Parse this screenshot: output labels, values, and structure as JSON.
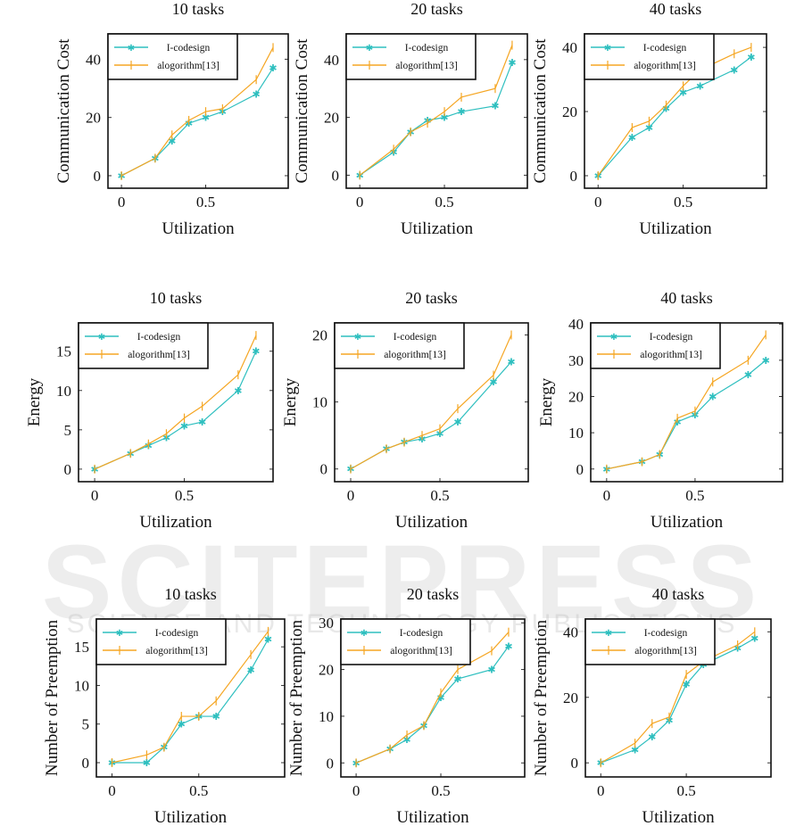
{
  "watermark": {
    "main": "SCITEPRESS",
    "sub": "SCIENCE AND TECHNOLOGY PUBLICATIONS"
  },
  "colors": {
    "I-codesign": "#2ebfbf",
    "alogorithm[13]": "#f5a623"
  },
  "chart_data": [
    {
      "type": "line",
      "title": "10 tasks",
      "xlabel": "Utilization",
      "ylabel": "Communication Cost",
      "xlim": [
        -0.08,
        0.99
      ],
      "ylim": [
        -4.3,
        48.7
      ],
      "xticks": [
        "0",
        "0.5"
      ],
      "yticks": [
        "0",
        "20",
        "40"
      ],
      "legend": "top-left",
      "x": [
        0,
        0.2,
        0.3,
        0.4,
        0.5,
        0.6,
        0.8,
        0.9
      ],
      "series": [
        {
          "name": "I-codesign",
          "marker": "star",
          "values": [
            0,
            6,
            12,
            18,
            20,
            22,
            28,
            37
          ]
        },
        {
          "name": "alogorithm[13]",
          "marker": "vbar",
          "values": [
            0,
            6,
            14,
            19,
            22,
            23,
            33,
            44
          ]
        }
      ]
    },
    {
      "type": "line",
      "title": "20 tasks",
      "xlabel": "Utilization",
      "ylabel": "Communication Cost",
      "xlim": [
        -0.08,
        0.99
      ],
      "ylim": [
        -4.5,
        48.9
      ],
      "xticks": [
        "0",
        "0.5"
      ],
      "yticks": [
        "0",
        "20",
        "40"
      ],
      "legend": "top-left",
      "x": [
        0,
        0.2,
        0.3,
        0.4,
        0.5,
        0.6,
        0.8,
        0.9
      ],
      "series": [
        {
          "name": "I-codesign",
          "marker": "star",
          "values": [
            0,
            8,
            15,
            19,
            20,
            22,
            24,
            39
          ]
        },
        {
          "name": "alogorithm[13]",
          "marker": "vbar",
          "values": [
            0,
            9,
            15,
            18,
            22,
            27,
            30,
            45
          ]
        }
      ]
    },
    {
      "type": "line",
      "title": "40 tasks",
      "xlabel": "Utilization",
      "ylabel": "Communication Cost",
      "xlim": [
        -0.08,
        0.99
      ],
      "ylim": [
        -3.9,
        44.2
      ],
      "xticks": [
        "0",
        "0.5"
      ],
      "yticks": [
        "0",
        "20",
        "40"
      ],
      "legend": "top-left",
      "x": [
        0,
        0.2,
        0.3,
        0.4,
        0.5,
        0.6,
        0.8,
        0.9
      ],
      "series": [
        {
          "name": "I-codesign",
          "marker": "star",
          "values": [
            0,
            12,
            15,
            21,
            26,
            28,
            33,
            37
          ]
        },
        {
          "name": "alogorithm[13]",
          "marker": "vbar",
          "values": [
            0,
            15,
            17,
            22,
            28,
            33,
            38,
            40
          ]
        }
      ]
    },
    {
      "type": "line",
      "title": "10 tasks",
      "xlabel": "Utilization",
      "ylabel": "Energy",
      "xlim": [
        -0.09,
        0.995
      ],
      "ylim": [
        -1.6,
        18.6
      ],
      "xticks": [
        "0",
        "0.5"
      ],
      "yticks": [
        "0",
        "5",
        "10",
        "15"
      ],
      "legend": "top-left",
      "x": [
        0,
        0.2,
        0.3,
        0.4,
        0.5,
        0.6,
        0.8,
        0.9
      ],
      "series": [
        {
          "name": "I-codesign",
          "marker": "star",
          "values": [
            0,
            2,
            3,
            4,
            5.5,
            6,
            10,
            15
          ]
        },
        {
          "name": "alogorithm[13]",
          "marker": "vbar",
          "values": [
            0,
            2,
            3.2,
            4.5,
            6.5,
            8,
            12,
            17
          ]
        }
      ]
    },
    {
      "type": "line",
      "title": "20 tasks",
      "xlabel": "Utilization",
      "ylabel": "Energy",
      "xlim": [
        -0.09,
        0.995
      ],
      "ylim": [
        -1.9,
        21.8
      ],
      "xticks": [
        "0",
        "0.5"
      ],
      "yticks": [
        "0",
        "10",
        "20"
      ],
      "legend": "top-left",
      "x": [
        0,
        0.2,
        0.3,
        0.4,
        0.5,
        0.6,
        0.8,
        0.9
      ],
      "series": [
        {
          "name": "I-codesign",
          "marker": "star",
          "values": [
            0,
            3,
            4,
            4.5,
            5.3,
            7,
            13,
            16
          ]
        },
        {
          "name": "alogorithm[13]",
          "marker": "vbar",
          "values": [
            0,
            3,
            4,
            5,
            6,
            9,
            14,
            20
          ]
        }
      ]
    },
    {
      "type": "line",
      "title": "40 tasks",
      "xlabel": "Utilization",
      "ylabel": "Energy",
      "xlim": [
        -0.09,
        0.995
      ],
      "ylim": [
        -3.5,
        40.3
      ],
      "xticks": [
        "0",
        "0.5"
      ],
      "yticks": [
        "0",
        "10",
        "20",
        "30",
        "40"
      ],
      "legend": "top-left",
      "x": [
        0,
        0.2,
        0.3,
        0.4,
        0.5,
        0.6,
        0.8,
        0.9
      ],
      "series": [
        {
          "name": "I-codesign",
          "marker": "star",
          "values": [
            0,
            2,
            4,
            13,
            15,
            20,
            26,
            30
          ]
        },
        {
          "name": "alogorithm[13]",
          "marker": "vbar",
          "values": [
            0,
            2,
            4,
            14,
            16,
            24,
            30,
            37
          ]
        }
      ]
    },
    {
      "type": "line",
      "title": "10 tasks",
      "xlabel": "Utilization",
      "ylabel": "Number of Preemption",
      "xlim": [
        -0.09,
        0.995
      ],
      "ylim": [
        -1.85,
        18.6
      ],
      "xticks": [
        "0",
        "0.5"
      ],
      "yticks": [
        "0",
        "5",
        "10",
        "15"
      ],
      "legend": "top-left",
      "x": [
        0,
        0.2,
        0.3,
        0.4,
        0.5,
        0.6,
        0.8,
        0.9
      ],
      "series": [
        {
          "name": "I-codesign",
          "marker": "star",
          "values": [
            0,
            0,
            2,
            5,
            6,
            6,
            12,
            16
          ]
        },
        {
          "name": "alogorithm[13]",
          "marker": "vbar",
          "values": [
            0,
            1,
            2,
            6,
            6,
            8,
            14,
            17
          ]
        }
      ]
    },
    {
      "type": "line",
      "title": "20 tasks",
      "xlabel": "Utilization",
      "ylabel": "Number of Preemption",
      "xlim": [
        -0.09,
        0.995
      ],
      "ylim": [
        -3,
        30.8
      ],
      "xticks": [
        "0",
        "0.5"
      ],
      "yticks": [
        "0",
        "10",
        "20",
        "30"
      ],
      "legend": "top-left",
      "x": [
        0,
        0.2,
        0.3,
        0.4,
        0.5,
        0.6,
        0.8,
        0.9
      ],
      "series": [
        {
          "name": "I-codesign",
          "marker": "star",
          "values": [
            0,
            3,
            5,
            8,
            14,
            18,
            20,
            25
          ]
        },
        {
          "name": "alogorithm[13]",
          "marker": "vbar",
          "values": [
            0,
            3,
            6,
            8,
            15,
            20,
            24,
            28
          ]
        }
      ]
    },
    {
      "type": "line",
      "title": "40 tasks",
      "xlabel": "Utilization",
      "ylabel": "Number of Preemption",
      "xlim": [
        -0.09,
        0.995
      ],
      "ylim": [
        -4.3,
        43.9
      ],
      "xticks": [
        "0",
        "0.5"
      ],
      "yticks": [
        "0",
        "20",
        "40"
      ],
      "legend": "top-left",
      "x": [
        0,
        0.2,
        0.3,
        0.4,
        0.5,
        0.6,
        0.8,
        0.9
      ],
      "series": [
        {
          "name": "I-codesign",
          "marker": "star",
          "values": [
            0,
            4,
            8,
            13,
            24,
            30,
            35,
            38
          ]
        },
        {
          "name": "alogorithm[13]",
          "marker": "vbar",
          "values": [
            0,
            6,
            12,
            14,
            27,
            31,
            36,
            40
          ]
        }
      ]
    }
  ]
}
